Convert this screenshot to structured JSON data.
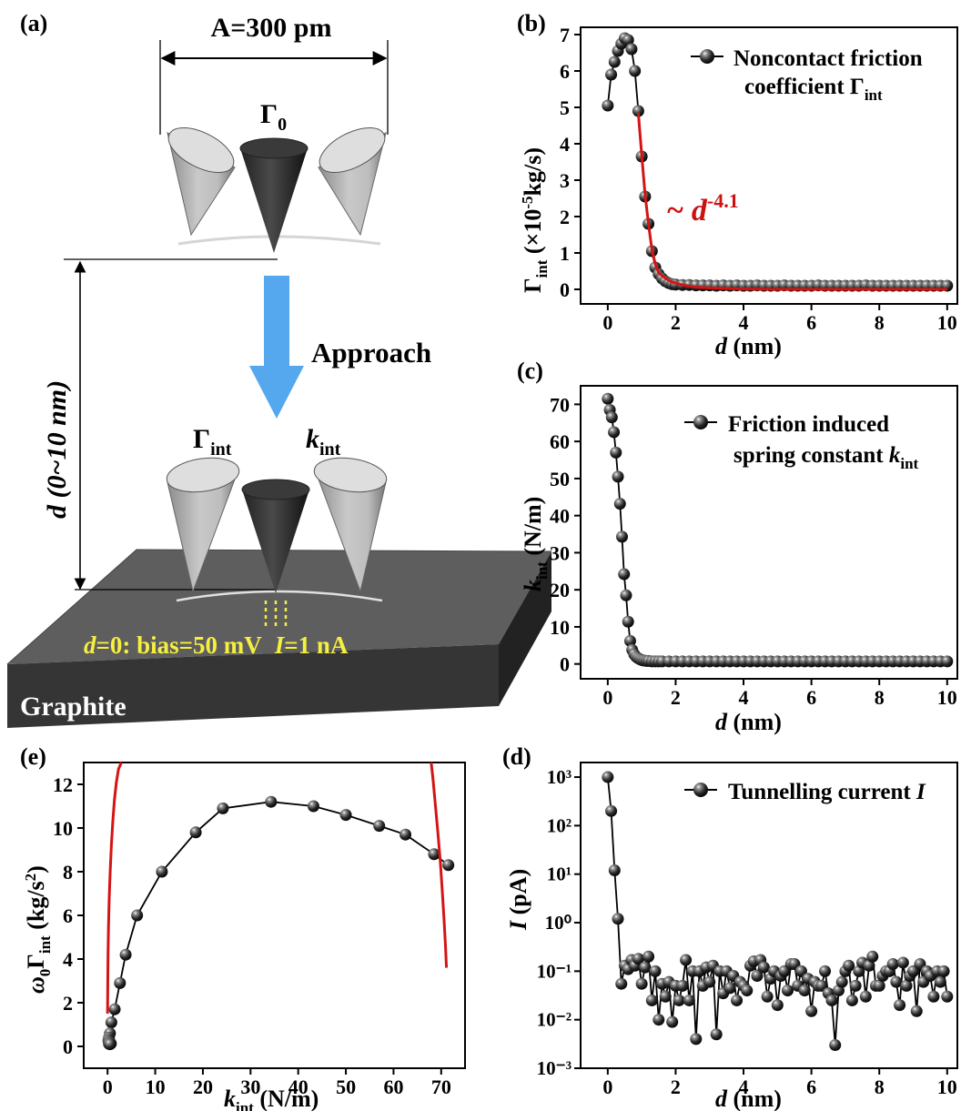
{
  "panel_a": {
    "label": "(a)",
    "amplitude": "A=300 pm",
    "gamma0_symbol": "Γ",
    "gamma0_sub": "0",
    "approach": "Approach",
    "distance_label": "d (0~10 nm)",
    "gamma_int_symbol": "Γ",
    "k_symbol": "k",
    "int_sub": "int",
    "condition_d": "d",
    "condition_bias": "=0: bias=50 mV",
    "condition_i": "I",
    "condition_current": "=1 nA",
    "substrate": "Graphite",
    "colors": {
      "arrow": "#56a8ee",
      "condition": "#f5ef40",
      "block_top": "#5e5e5e",
      "block_front": "#353535",
      "block_side": "#222222"
    }
  },
  "panel_b": {
    "label": "(b)"
  },
  "panel_c": {
    "label": "(c)"
  },
  "panel_d": {
    "label": "(d)"
  },
  "panel_e": {
    "label": "(e)"
  },
  "chart_data": [
    {
      "id": "b",
      "type": "scatter",
      "xlabel": "d (nm)",
      "ylabel": "Γint (×10-5kg/s)",
      "xlim": [
        -0.8,
        10.3
      ],
      "ylim": [
        -0.4,
        7.2
      ],
      "xticks": [
        0,
        2,
        4,
        6,
        8,
        10
      ],
      "yticks": [
        0,
        1,
        2,
        3,
        4,
        5,
        6,
        7
      ],
      "legend": {
        "line1": "Noncontact friction",
        "line2": "coefficient Γ",
        "line2_sub": "int"
      },
      "annotation": {
        "text": "~ d",
        "sup": "-4.1",
        "color": "#cc1111"
      },
      "series": [
        {
          "x": [
            0,
            0.1,
            0.2,
            0.3,
            0.4,
            0.5,
            0.6,
            0.7,
            0.8,
            0.9,
            1.0,
            1.1,
            1.2,
            1.3,
            1.4,
            1.5,
            1.6,
            1.7,
            1.8,
            1.9,
            2.0,
            2.2,
            2.4,
            2.6,
            2.8,
            3.0,
            3.2,
            3.4,
            3.6,
            3.8,
            4.0,
            4.2,
            4.4,
            4.6,
            4.8,
            5.0,
            5.2,
            5.4,
            5.6,
            5.8,
            6.0,
            6.2,
            6.4,
            6.6,
            6.8,
            7.0,
            7.2,
            7.4,
            7.6,
            7.8,
            8.0,
            8.2,
            8.4,
            8.6,
            8.8,
            9.0,
            9.2,
            9.4,
            9.6,
            9.8,
            10.0
          ],
          "y": [
            5.05,
            5.9,
            6.25,
            6.55,
            6.75,
            6.9,
            6.85,
            6.6,
            6.0,
            4.9,
            3.65,
            2.55,
            1.8,
            1.05,
            0.6,
            0.42,
            0.3,
            0.22,
            0.17,
            0.14,
            0.13,
            0.12,
            0.12,
            0.11,
            0.11,
            0.11,
            0.1,
            0.11,
            0.1,
            0.11,
            0.1,
            0.1,
            0.11,
            0.1,
            0.1,
            0.1,
            0.11,
            0.1,
            0.1,
            0.1,
            0.1,
            0.11,
            0.1,
            0.1,
            0.1,
            0.1,
            0.1,
            0.1,
            0.11,
            0.1,
            0.1,
            0.1,
            0.1,
            0.1,
            0.1,
            0.1,
            0.1,
            0.1,
            0.1,
            0.1,
            0.1
          ]
        },
        {
          "kind": "fit",
          "color": "#d41414",
          "x": [
            0.9,
            1.0,
            1.1,
            1.2,
            1.3,
            1.4,
            1.5,
            1.7,
            1.9,
            2.2,
            2.6,
            3.2,
            4,
            5,
            6,
            7,
            8,
            9,
            10
          ],
          "y": [
            4.85,
            3.7,
            2.6,
            1.8,
            1.1,
            0.7,
            0.45,
            0.3,
            0.2,
            0.12,
            0.06,
            0.03,
            0.01,
            0,
            0,
            0,
            0,
            0,
            0
          ]
        }
      ]
    },
    {
      "id": "c",
      "type": "scatter",
      "xlabel": "d (nm)",
      "ylabel": "kint (N/m)",
      "xlim": [
        -0.8,
        10.3
      ],
      "ylim": [
        -4,
        75
      ],
      "xticks": [
        0,
        2,
        4,
        6,
        8,
        10
      ],
      "yticks": [
        0,
        10,
        20,
        30,
        40,
        50,
        60,
        70
      ],
      "legend": {
        "line1": "Friction induced",
        "line2": "spring constant ",
        "line2_italic": "k",
        "line2_sub": "int"
      },
      "series": [
        {
          "x": [
            0,
            0.06,
            0.12,
            0.18,
            0.24,
            0.3,
            0.36,
            0.42,
            0.48,
            0.54,
            0.6,
            0.66,
            0.72,
            0.78,
            0.84,
            0.9,
            0.96,
            1.02,
            1.08,
            1.14,
            1.2,
            1.3,
            1.4,
            1.5,
            1.6,
            1.8,
            2.0,
            2.2,
            2.4,
            2.6,
            2.8,
            3.0,
            3.2,
            3.4,
            3.6,
            3.8,
            4.0,
            4.2,
            4.4,
            4.6,
            4.8,
            5.0,
            5.2,
            5.4,
            5.6,
            5.8,
            6.0,
            6.2,
            6.4,
            6.6,
            6.8,
            7.0,
            7.2,
            7.4,
            7.6,
            7.8,
            8.0,
            8.2,
            8.4,
            8.6,
            8.8,
            9.0,
            9.2,
            9.4,
            9.6,
            9.8,
            10.0
          ],
          "y": [
            71.5,
            68.5,
            66.5,
            62.5,
            57,
            50.5,
            43.2,
            34.3,
            24.2,
            18.5,
            11.4,
            6.2,
            3.8,
            2.6,
            1.9,
            1.5,
            1.2,
            1.0,
            0.9,
            0.8,
            0.8,
            0.7,
            0.7,
            0.7,
            0.7,
            0.7,
            0.7,
            0.7,
            0.7,
            0.7,
            0.7,
            0.7,
            0.7,
            0.7,
            0.7,
            0.7,
            0.7,
            0.7,
            0.7,
            0.7,
            0.7,
            0.7,
            0.7,
            0.7,
            0.7,
            0.7,
            0.7,
            0.7,
            0.7,
            0.7,
            0.7,
            0.7,
            0.7,
            0.7,
            0.7,
            0.7,
            0.7,
            0.7,
            0.7,
            0.7,
            0.7,
            0.7,
            0.7,
            0.7,
            0.7,
            0.7,
            0.7
          ]
        }
      ]
    },
    {
      "id": "d",
      "type": "scatter",
      "scale": "log",
      "xlabel": "d (nm)",
      "ylabel": "I (pA)",
      "xlim": [
        -0.8,
        10.3
      ],
      "ylim": [
        0.001,
        2000
      ],
      "xticks": [
        0,
        2,
        4,
        6,
        8,
        10
      ],
      "yticks": [
        "10³",
        "10²",
        "10¹",
        "10⁰",
        "10⁻¹",
        "10⁻²",
        "10⁻³"
      ],
      "legend": {
        "line1": "Tunnelling current ",
        "line1_italic": "I"
      },
      "series": [
        {
          "x": [
            0,
            0.1,
            0.2,
            0.3,
            0.4,
            0.5,
            0.6,
            0.7,
            0.8,
            0.9,
            1.0,
            1.1,
            1.2,
            1.3,
            1.4,
            1.5,
            1.6,
            1.7,
            1.8,
            1.9,
            2.0,
            2.1,
            2.2,
            2.3,
            2.4,
            2.5,
            2.6,
            2.7,
            2.8,
            2.9,
            3.0,
            3.1,
            3.2,
            3.3,
            3.4,
            3.5,
            3.6,
            3.7,
            3.8,
            3.9,
            4.0,
            4.1,
            4.2,
            4.3,
            4.4,
            4.5,
            4.6,
            4.7,
            4.8,
            4.9,
            5.0,
            5.1,
            5.2,
            5.3,
            5.4,
            5.5,
            5.6,
            5.7,
            5.8,
            5.9,
            6.0,
            6.1,
            6.2,
            6.3,
            6.4,
            6.5,
            6.6,
            6.7,
            6.8,
            6.9,
            7.0,
            7.1,
            7.2,
            7.3,
            7.4,
            7.5,
            7.6,
            7.7,
            7.8,
            7.9,
            8.0,
            8.1,
            8.2,
            8.3,
            8.4,
            8.5,
            8.6,
            8.7,
            8.8,
            8.9,
            9.0,
            9.1,
            9.2,
            9.3,
            9.4,
            9.5,
            9.6,
            9.7,
            9.8,
            9.9,
            10.0
          ],
          "y": [
            1000,
            200,
            12,
            1.2,
            0.055,
            0.13,
            0.11,
            0.17,
            0.13,
            0.18,
            0.055,
            0.12,
            0.2,
            0.025,
            0.1,
            0.01,
            0.055,
            0.03,
            0.06,
            0.009,
            0.05,
            0.025,
            0.05,
            0.17,
            0.025,
            0.1,
            0.004,
            0.1,
            0.05,
            0.12,
            0.06,
            0.13,
            0.005,
            0.1,
            0.035,
            0.1,
            0.045,
            0.08,
            0.025,
            0.06,
            0.05,
            0.04,
            0.13,
            0.16,
            0.08,
            0.17,
            0.12,
            0.03,
            0.07,
            0.1,
            0.02,
            0.08,
            0.1,
            0.04,
            0.14,
            0.14,
            0.05,
            0.1,
            0.04,
            0.07,
            0.015,
            0.06,
            0.05,
            0.05,
            0.1,
            0.035,
            0.025,
            0.003,
            0.04,
            0.06,
            0.1,
            0.13,
            0.025,
            0.05,
            0.1,
            0.15,
            0.03,
            0.13,
            0.2,
            0.05,
            0.05,
            0.08,
            0.1,
            0.1,
            0.14,
            0.06,
            0.02,
            0.15,
            0.05,
            0.08,
            0.1,
            0.015,
            0.14,
            0.06,
            0.1,
            0.08,
            0.03,
            0.1,
            0.06,
            0.1,
            0.03
          ]
        }
      ]
    },
    {
      "id": "e",
      "type": "scatter",
      "xlabel": "kint (N/m)",
      "ylabel": "ω0Γint (kg/s²)",
      "xlim": [
        -5,
        75
      ],
      "ylim": [
        -1,
        13
      ],
      "xticks": [
        0,
        10,
        20,
        30,
        40,
        50,
        60,
        70
      ],
      "yticks": [
        0,
        2,
        4,
        6,
        8,
        10,
        12
      ],
      "series": [
        {
          "x": [
            71.5,
            68.5,
            62.5,
            57,
            50,
            43.2,
            34.3,
            24.2,
            18.5,
            11.4,
            6.2,
            3.8,
            2.6,
            1.5,
            0.8,
            0.5,
            0.3,
            0.2,
            0.2,
            0.3,
            0.4,
            0.6,
            0.7,
            0.3,
            0.5
          ],
          "y": [
            8.3,
            8.8,
            9.7,
            10.1,
            10.6,
            11.0,
            11.2,
            10.9,
            9.8,
            8.0,
            6.0,
            4.2,
            2.9,
            1.7,
            1.1,
            0.6,
            0.4,
            0.3,
            0.25,
            0.2,
            0.18,
            0.15,
            0.13,
            0.12,
            0.1
          ]
        },
        {
          "kind": "fit-left",
          "color": "#d41414",
          "x": [
            0,
            0.05,
            0.1,
            0.2,
            0.35,
            0.55,
            0.8,
            1.1,
            1.45,
            1.85,
            2.3,
            2.9
          ],
          "y": [
            1.5,
            3.0,
            4.2,
            5.5,
            6.8,
            8.0,
            9.2,
            10.3,
            11.3,
            12.1,
            12.7,
            13.0
          ]
        },
        {
          "kind": "fit-right",
          "color": "#d41414",
          "x": [
            67.9,
            68.3,
            68.8,
            69.3,
            69.8,
            70.2,
            70.6,
            70.9,
            71.1
          ],
          "y": [
            13.0,
            12.2,
            11.0,
            9.8,
            8.5,
            7.2,
            5.8,
            4.6,
            3.6
          ]
        }
      ]
    }
  ]
}
